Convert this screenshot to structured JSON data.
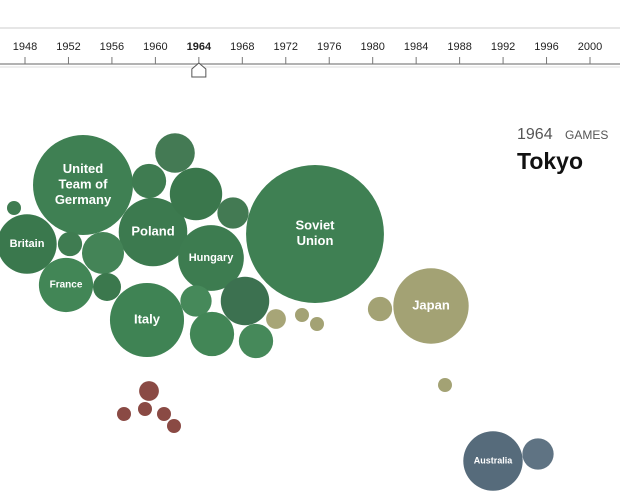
{
  "timeline": {
    "years": [
      1948,
      1952,
      1956,
      1960,
      1964,
      1968,
      1972,
      1976,
      1980,
      1984,
      1988,
      1992,
      1996,
      2000
    ],
    "selected": 1964
  },
  "header": {
    "year": "1964",
    "games_label": "GAMES",
    "city": "Tokyo"
  },
  "bubbles": [
    {
      "label_lines": [
        "United",
        "Team of",
        "Germany"
      ],
      "value": 51,
      "color": "#3f8053"
    },
    {
      "label_lines": [
        "Soviet",
        "Union"
      ],
      "value": 97,
      "color": "#3f8053"
    },
    {
      "label_lines": [
        "Poland"
      ],
      "value": 24,
      "color": "#3c7a4f"
    },
    {
      "label_lines": [
        "Hungary"
      ],
      "value": 22,
      "color": "#3d7c50"
    },
    {
      "label_lines": [
        "Italy"
      ],
      "value": 28,
      "color": "#3f8354"
    },
    {
      "label_lines": [
        "Britain"
      ],
      "value": 18,
      "color": "#3a784d"
    },
    {
      "label_lines": [
        "France"
      ],
      "value": 15,
      "color": "#428656"
    },
    {
      "value": 8,
      "color": "#447a54"
    },
    {
      "value": 6,
      "color": "#3f7c51"
    },
    {
      "value": 14,
      "color": "#3a774c"
    },
    {
      "value": 5,
      "color": "#437a53"
    },
    {
      "value": 1,
      "color": "#3f7c51"
    },
    {
      "value": 3,
      "color": "#3f7c51"
    },
    {
      "value": 9,
      "color": "#448457"
    },
    {
      "value": 4,
      "color": "#3b784d"
    },
    {
      "value": 5,
      "color": "#46895a"
    },
    {
      "value": 12,
      "color": "#3c7150"
    },
    {
      "value": 10,
      "color": "#428656"
    },
    {
      "value": 6,
      "color": "#46895a"
    },
    {
      "label_lines": [
        "Japan"
      ],
      "value": 29,
      "color": "#a3a274"
    },
    {
      "value": 3,
      "color": "#a3a274"
    },
    {
      "value": 2,
      "color": "#a7a577"
    },
    {
      "value": 1,
      "color": "#a3a274"
    },
    {
      "value": 1,
      "color": "#a3a274"
    },
    {
      "value": 1,
      "color": "#a3a274"
    },
    {
      "value": 2,
      "color": "#8a4a44"
    },
    {
      "value": 1,
      "color": "#8a4a44"
    },
    {
      "value": 1,
      "color": "#8a4a44"
    },
    {
      "value": 1,
      "color": "#8a4a44"
    },
    {
      "value": 1,
      "color": "#8a4a44"
    },
    {
      "label_lines": [
        "Australia"
      ],
      "value": 18,
      "color": "#566b7b"
    },
    {
      "value": 5,
      "color": "#5f7383"
    }
  ]
}
